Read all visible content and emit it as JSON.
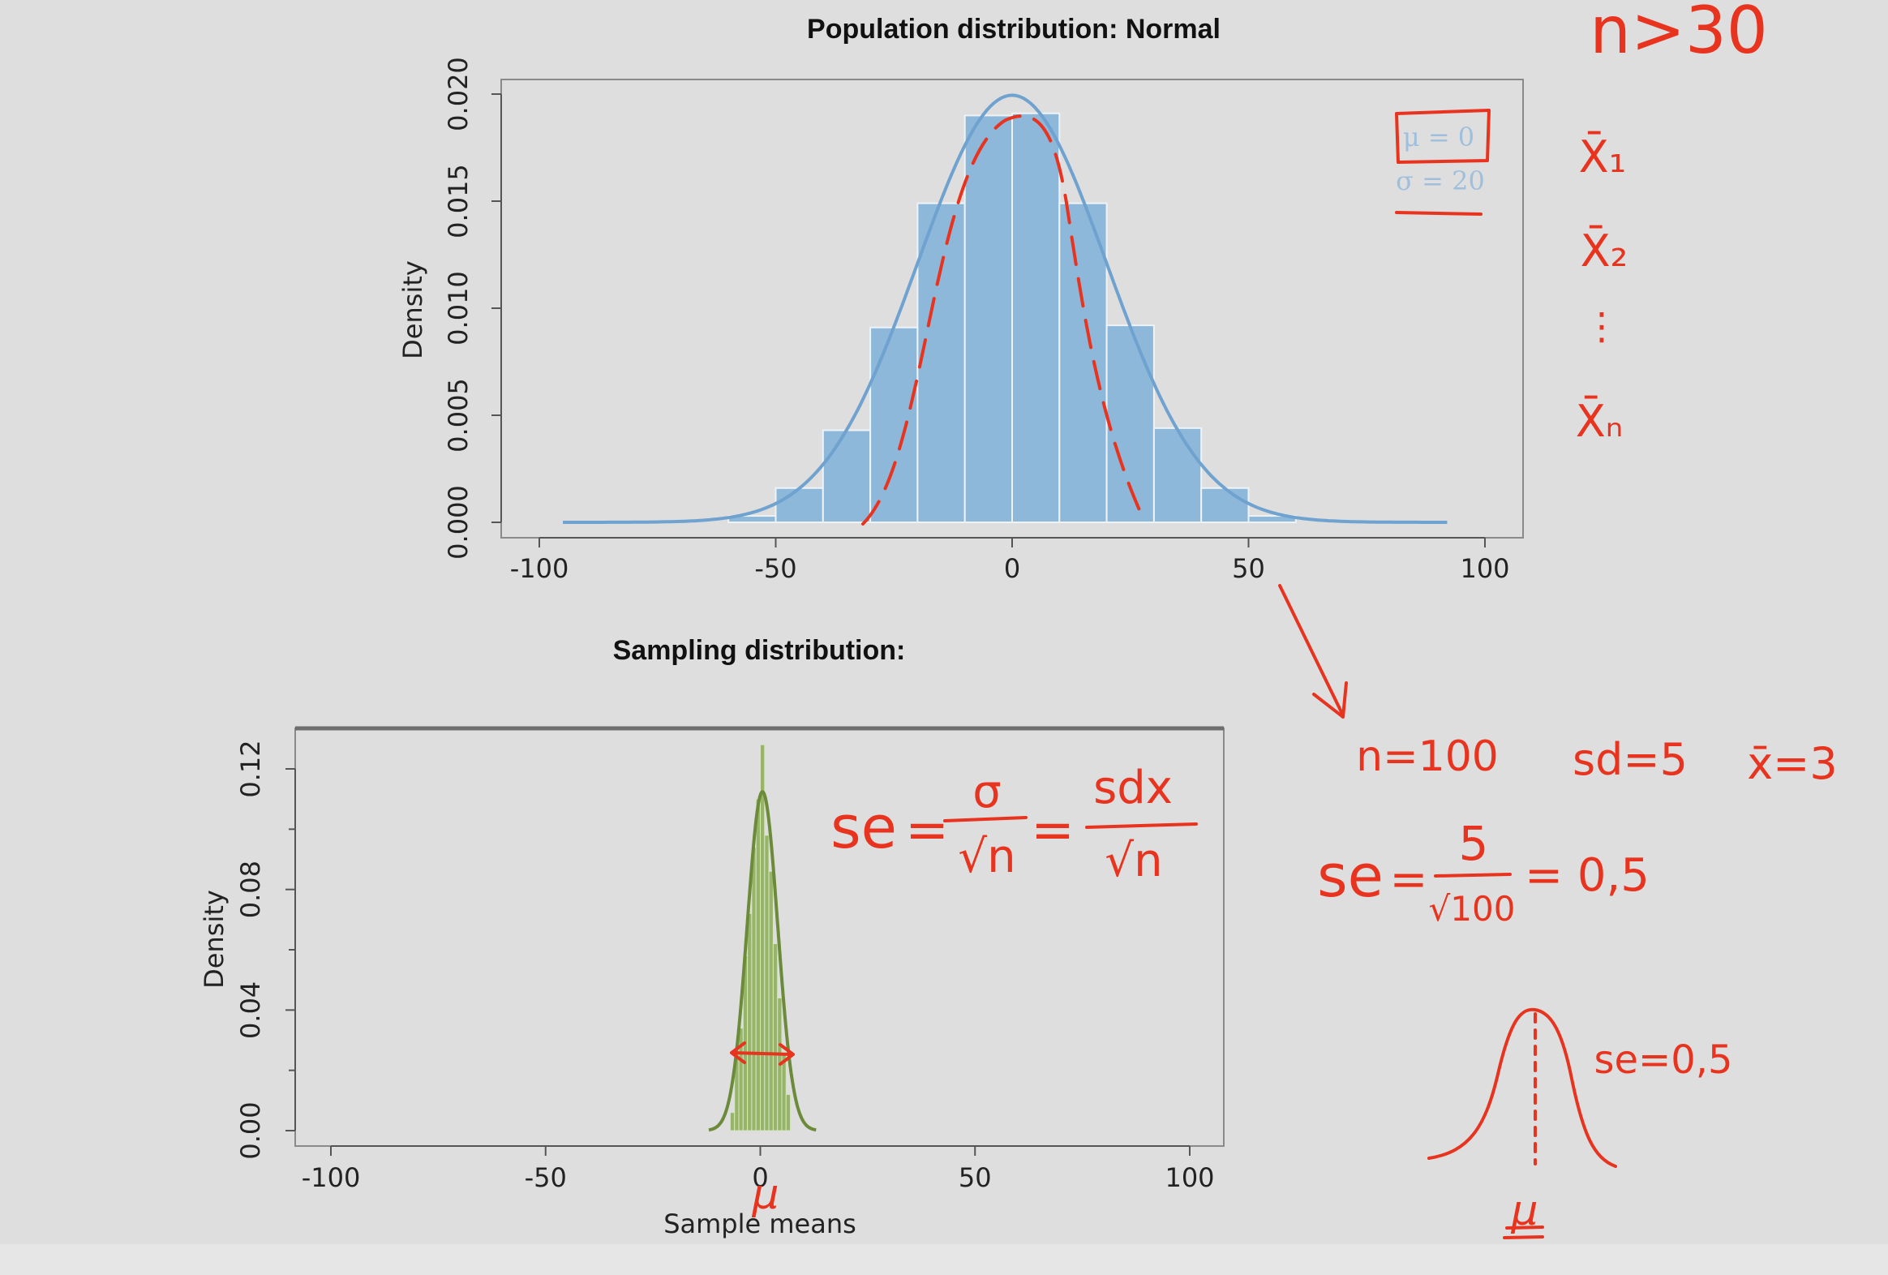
{
  "chart_data": [
    {
      "type": "bar",
      "title": "Population distribution: Normal",
      "xlabel": "",
      "ylabel": "Density",
      "xlim": [
        -100,
        100
      ],
      "ylim": [
        0,
        0.02
      ],
      "x_ticks": [
        "-100",
        "-50",
        "0",
        "50",
        "100"
      ],
      "y_ticks": [
        "0.000",
        "0.005",
        "0.010",
        "0.015",
        "0.020"
      ],
      "bin_width": 10,
      "bins": [
        {
          "x0": -60,
          "x1": -50,
          "value": 0.0003
        },
        {
          "x0": -50,
          "x1": -40,
          "value": 0.0016
        },
        {
          "x0": -40,
          "x1": -30,
          "value": 0.0043
        },
        {
          "x0": -30,
          "x1": -20,
          "value": 0.0091
        },
        {
          "x0": -20,
          "x1": -10,
          "value": 0.0149
        },
        {
          "x0": -10,
          "x1": 0,
          "value": 0.019
        },
        {
          "x0": 0,
          "x1": 10,
          "value": 0.0191
        },
        {
          "x0": 10,
          "x1": 20,
          "value": 0.0149
        },
        {
          "x0": 20,
          "x1": 30,
          "value": 0.0092
        },
        {
          "x0": 30,
          "x1": 40,
          "value": 0.0044
        },
        {
          "x0": 40,
          "x1": 50,
          "value": 0.0016
        },
        {
          "x0": 50,
          "x1": 60,
          "value": 0.0003
        }
      ],
      "density_curve": {
        "mean": 0,
        "sd": 20,
        "from": -95,
        "to": 92
      },
      "legend": [
        "μ = 0",
        "σ = 20"
      ],
      "legend_position": "top-right",
      "colors": {
        "bars": "#8db8da",
        "curve": "#6fa2cf",
        "legend_text": "#9fbfdc"
      }
    },
    {
      "type": "bar",
      "title": "Sampling distribution:",
      "xlabel": "Sample means",
      "ylabel": "Density",
      "xlim": [
        -100,
        100
      ],
      "ylim": [
        0,
        0.12
      ],
      "x_ticks": [
        "-100",
        "-50",
        "0",
        "50",
        "100"
      ],
      "y_ticks": [
        "0.00",
        "0.04",
        "0.08",
        "0.12"
      ],
      "bin_width": 1,
      "bins": [
        {
          "x0": -7,
          "x1": -6,
          "value": 0.006
        },
        {
          "x0": -6,
          "x1": -5,
          "value": 0.026
        },
        {
          "x0": -5,
          "x1": -4,
          "value": 0.034
        },
        {
          "x0": -4,
          "x1": -3,
          "value": 0.058
        },
        {
          "x0": -3,
          "x1": -2,
          "value": 0.072
        },
        {
          "x0": -2,
          "x1": -1,
          "value": 0.094
        },
        {
          "x0": -1,
          "x1": 0,
          "value": 0.11
        },
        {
          "x0": 0,
          "x1": 1,
          "value": 0.128
        },
        {
          "x0": 1,
          "x1": 2,
          "value": 0.098
        },
        {
          "x0": 2,
          "x1": 3,
          "value": 0.086
        },
        {
          "x0": 3,
          "x1": 4,
          "value": 0.062
        },
        {
          "x0": 4,
          "x1": 5,
          "value": 0.044
        },
        {
          "x0": 5,
          "x1": 6,
          "value": 0.026
        },
        {
          "x0": 6,
          "x1": 7,
          "value": 0.012
        }
      ],
      "density_curve": {
        "mean": 0.5,
        "sd": 3.55,
        "from": -12,
        "to": 13
      },
      "colors": {
        "bars": "#97b568",
        "curve": "#6b8a3a"
      }
    }
  ],
  "annotations": {
    "n_rule": "n>30",
    "sample_means": [
      "X̄₁",
      "X̄₂",
      "⋮",
      "X̄ₙ"
    ],
    "given": [
      "n=100",
      "sd=5",
      "x̄=3"
    ],
    "mu_mark_1": "μ",
    "mu_mark_2": "μ",
    "se_sketch_label": "se=0,5",
    "se_formula": {
      "lhs": "se",
      "eq": "=",
      "num_1": "σ",
      "den_1": "√n",
      "num_2": "sdx",
      "den_2": "√n"
    },
    "se_value": {
      "lhs": "se",
      "eq": "=",
      "num": "5",
      "den": "√100",
      "result": "= 0,5"
    },
    "ink_color": "#e8331f"
  }
}
